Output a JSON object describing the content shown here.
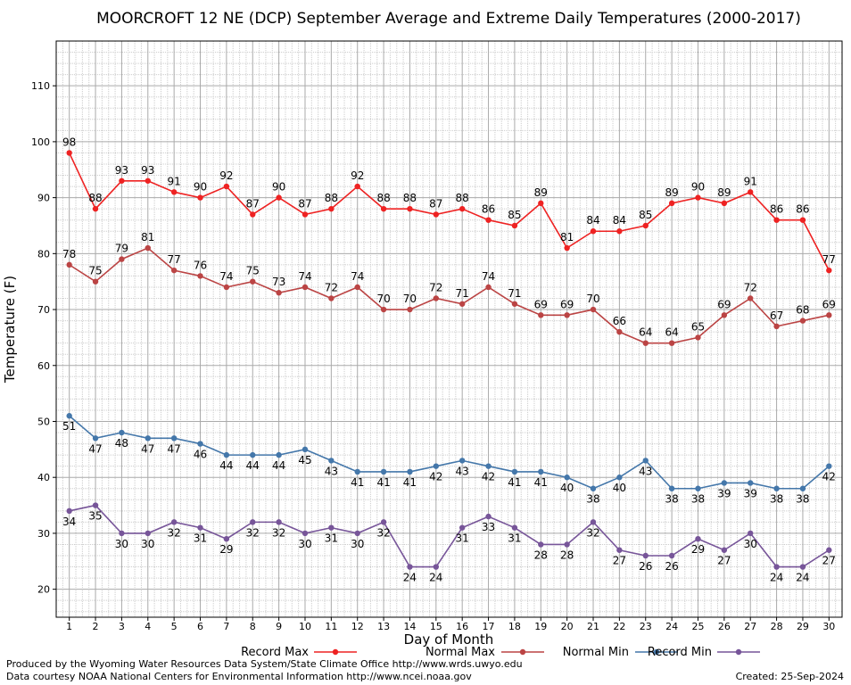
{
  "chart_data": {
    "type": "line",
    "title": "MOORCROFT 12 NE (DCP) September Average and Extreme Daily Temperatures (2000-2017)",
    "xlabel": "Day of Month",
    "ylabel": "Temperature (F)",
    "x": [
      1,
      2,
      3,
      4,
      5,
      6,
      7,
      8,
      9,
      10,
      11,
      12,
      13,
      14,
      15,
      16,
      17,
      18,
      19,
      20,
      21,
      22,
      23,
      24,
      25,
      26,
      27,
      28,
      29,
      30
    ],
    "xlim": [
      0.5,
      30.5
    ],
    "ylim": [
      15,
      118
    ],
    "yticks": [
      20,
      30,
      40,
      50,
      60,
      70,
      80,
      90,
      100,
      110
    ],
    "grid": true,
    "legend_position": "bottom",
    "series": [
      {
        "name": "Record Max",
        "color": "#ee2222",
        "values": [
          98,
          88,
          93,
          93,
          91,
          90,
          92,
          87,
          90,
          87,
          88,
          92,
          88,
          88,
          87,
          88,
          86,
          85,
          89,
          81,
          84,
          84,
          85,
          89,
          90,
          89,
          91,
          86,
          86,
          77
        ]
      },
      {
        "name": "Normal Max",
        "color": "#bb4444",
        "values": [
          78,
          75,
          79,
          81,
          77,
          76,
          74,
          75,
          73,
          74,
          72,
          74,
          70,
          70,
          72,
          71,
          74,
          71,
          69,
          69,
          70,
          66,
          64,
          64,
          65,
          69,
          72,
          67,
          68,
          69
        ]
      },
      {
        "name": "Normal Min",
        "color": "#4477aa",
        "values": [
          51,
          47,
          48,
          47,
          47,
          46,
          44,
          44,
          44,
          45,
          43,
          41,
          41,
          41,
          42,
          43,
          42,
          41,
          41,
          40,
          38,
          40,
          43,
          38,
          38,
          39,
          39,
          38,
          38,
          42
        ]
      },
      {
        "name": "Record Min",
        "color": "#775599",
        "values": [
          34,
          35,
          30,
          30,
          32,
          31,
          29,
          32,
          32,
          30,
          31,
          30,
          32,
          24,
          24,
          31,
          33,
          31,
          28,
          28,
          32,
          27,
          26,
          26,
          29,
          27,
          30,
          24,
          24,
          27
        ]
      }
    ]
  },
  "credits": {
    "line1": "Produced by the Wyoming Water Resources Data System/State Climate Office http://www.wrds.uwyo.edu",
    "line2": "Data courtesy NOAA National Centers for Environmental Information http://www.ncei.noaa.gov",
    "created": "Created:  25-Sep-2024"
  }
}
